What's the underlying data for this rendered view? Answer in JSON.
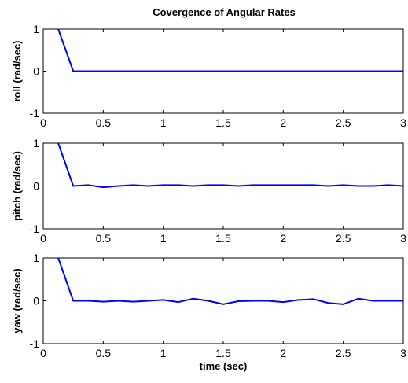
{
  "chart_data": [
    {
      "type": "line",
      "title": "Covergence of Angular Rates",
      "xlabel": "",
      "ylabel": "roll (rad/sec)",
      "xlim": [
        0,
        3
      ],
      "ylim": [
        -1,
        1
      ],
      "xticks": [
        "0",
        "0.5",
        "1",
        "1.5",
        "2",
        "2.5",
        "3"
      ],
      "yticks": [
        "-1",
        "0",
        "1"
      ],
      "grid": false,
      "color": "#0000ff",
      "x": [
        0.125,
        0.25,
        0.375,
        0.5,
        0.625,
        0.75,
        0.875,
        1.0,
        1.125,
        1.25,
        1.375,
        1.5,
        1.625,
        1.75,
        1.875,
        2.0,
        2.125,
        2.25,
        2.375,
        2.5,
        2.625,
        2.75,
        2.875,
        3.0
      ],
      "values": [
        1.0,
        0.0,
        0.0,
        0.0,
        0.0,
        0.0,
        0.0,
        0.0,
        0.0,
        0.0,
        0.0,
        0.0,
        0.0,
        0.0,
        0.0,
        0.0,
        0.0,
        0.0,
        0.0,
        0.0,
        0.0,
        0.0,
        0.0,
        0.0
      ]
    },
    {
      "type": "line",
      "title": "",
      "xlabel": "",
      "ylabel": "pitch (rad/sec)",
      "xlim": [
        0,
        3
      ],
      "ylim": [
        -1,
        1
      ],
      "xticks": [
        "0",
        "0.5",
        "1",
        "1.5",
        "2",
        "2.5",
        "3"
      ],
      "yticks": [
        "-1",
        "0",
        "1"
      ],
      "grid": false,
      "color": "#0000ff",
      "x": [
        0.125,
        0.25,
        0.375,
        0.5,
        0.625,
        0.75,
        0.875,
        1.0,
        1.125,
        1.25,
        1.375,
        1.5,
        1.625,
        1.75,
        1.875,
        2.0,
        2.125,
        2.25,
        2.375,
        2.5,
        2.625,
        2.75,
        2.875,
        3.0
      ],
      "values": [
        1.0,
        0.0,
        0.02,
        -0.03,
        0.0,
        0.02,
        0.0,
        0.02,
        0.02,
        0.0,
        0.02,
        0.02,
        0.0,
        0.02,
        0.02,
        0.02,
        0.02,
        0.02,
        0.0,
        0.02,
        0.0,
        0.0,
        0.02,
        0.0
      ]
    },
    {
      "type": "line",
      "title": "",
      "xlabel": "time (sec)",
      "ylabel": "yaw (rad/sec)",
      "xlim": [
        0,
        3
      ],
      "ylim": [
        -1,
        1
      ],
      "xticks": [
        "0",
        "0.5",
        "1",
        "1.5",
        "2",
        "2.5",
        "3"
      ],
      "yticks": [
        "-1",
        "0",
        "1"
      ],
      "grid": false,
      "color": "#0000ff",
      "x": [
        0.125,
        0.25,
        0.375,
        0.5,
        0.625,
        0.75,
        0.875,
        1.0,
        1.125,
        1.25,
        1.375,
        1.5,
        1.625,
        1.75,
        1.875,
        2.0,
        2.125,
        2.25,
        2.375,
        2.5,
        2.625,
        2.75,
        2.875,
        3.0
      ],
      "values": [
        1.0,
        0.0,
        0.0,
        -0.02,
        0.0,
        -0.02,
        0.0,
        0.02,
        -0.03,
        0.05,
        0.0,
        -0.08,
        -0.01,
        0.0,
        0.0,
        -0.03,
        0.02,
        0.04,
        -0.05,
        -0.08,
        0.05,
        0.0,
        0.0,
        0.0
      ]
    }
  ]
}
